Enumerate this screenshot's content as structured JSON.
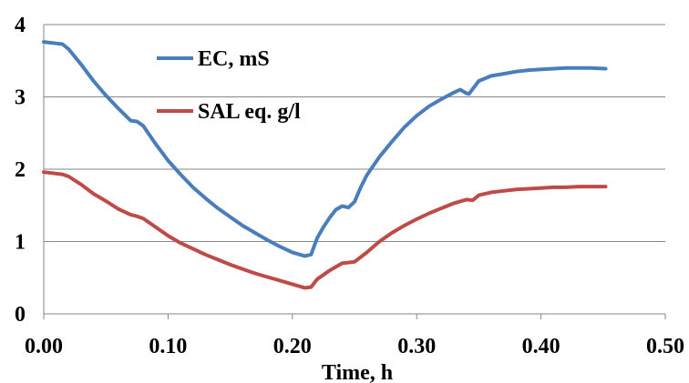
{
  "chart_data": {
    "type": "line",
    "xlabel": "Time, h",
    "ylabel": "",
    "xlim": [
      0.0,
      0.5
    ],
    "ylim": [
      0,
      4
    ],
    "x_ticks": [
      "0.00",
      "0.10",
      "0.20",
      "0.30",
      "0.40",
      "0.50"
    ],
    "y_ticks": [
      "0",
      "1",
      "2",
      "3",
      "4"
    ],
    "grid": "horizontal",
    "legend_position": "top-center",
    "series": [
      {
        "name": "EC, mS",
        "color": "#4a7ebb",
        "points": [
          [
            0.0,
            3.76
          ],
          [
            0.01,
            3.74
          ],
          [
            0.015,
            3.73
          ],
          [
            0.02,
            3.66
          ],
          [
            0.03,
            3.45
          ],
          [
            0.04,
            3.22
          ],
          [
            0.05,
            3.02
          ],
          [
            0.06,
            2.84
          ],
          [
            0.07,
            2.67
          ],
          [
            0.075,
            2.66
          ],
          [
            0.08,
            2.6
          ],
          [
            0.09,
            2.35
          ],
          [
            0.1,
            2.12
          ],
          [
            0.11,
            1.93
          ],
          [
            0.12,
            1.75
          ],
          [
            0.13,
            1.6
          ],
          [
            0.14,
            1.46
          ],
          [
            0.15,
            1.34
          ],
          [
            0.16,
            1.22
          ],
          [
            0.17,
            1.12
          ],
          [
            0.18,
            1.02
          ],
          [
            0.19,
            0.93
          ],
          [
            0.2,
            0.85
          ],
          [
            0.21,
            0.8
          ],
          [
            0.215,
            0.82
          ],
          [
            0.22,
            1.05
          ],
          [
            0.225,
            1.2
          ],
          [
            0.23,
            1.33
          ],
          [
            0.235,
            1.44
          ],
          [
            0.24,
            1.49
          ],
          [
            0.245,
            1.47
          ],
          [
            0.25,
            1.55
          ],
          [
            0.255,
            1.75
          ],
          [
            0.26,
            1.92
          ],
          [
            0.27,
            2.17
          ],
          [
            0.28,
            2.38
          ],
          [
            0.29,
            2.58
          ],
          [
            0.3,
            2.74
          ],
          [
            0.31,
            2.87
          ],
          [
            0.32,
            2.97
          ],
          [
            0.33,
            3.06
          ],
          [
            0.335,
            3.1
          ],
          [
            0.34,
            3.05
          ],
          [
            0.342,
            3.04
          ],
          [
            0.35,
            3.22
          ],
          [
            0.36,
            3.29
          ],
          [
            0.37,
            3.32
          ],
          [
            0.38,
            3.35
          ],
          [
            0.39,
            3.37
          ],
          [
            0.4,
            3.38
          ],
          [
            0.41,
            3.39
          ],
          [
            0.42,
            3.4
          ],
          [
            0.43,
            3.4
          ],
          [
            0.44,
            3.4
          ],
          [
            0.452,
            3.39
          ]
        ]
      },
      {
        "name": "SAL eq. g/l",
        "color": "#be4b48",
        "points": [
          [
            0.0,
            1.96
          ],
          [
            0.01,
            1.94
          ],
          [
            0.015,
            1.93
          ],
          [
            0.02,
            1.9
          ],
          [
            0.03,
            1.79
          ],
          [
            0.04,
            1.66
          ],
          [
            0.05,
            1.56
          ],
          [
            0.06,
            1.45
          ],
          [
            0.07,
            1.37
          ],
          [
            0.075,
            1.35
          ],
          [
            0.08,
            1.32
          ],
          [
            0.09,
            1.2
          ],
          [
            0.1,
            1.08
          ],
          [
            0.11,
            0.98
          ],
          [
            0.12,
            0.9
          ],
          [
            0.13,
            0.82
          ],
          [
            0.14,
            0.75
          ],
          [
            0.15,
            0.68
          ],
          [
            0.16,
            0.62
          ],
          [
            0.17,
            0.56
          ],
          [
            0.18,
            0.51
          ],
          [
            0.19,
            0.46
          ],
          [
            0.2,
            0.41
          ],
          [
            0.21,
            0.36
          ],
          [
            0.215,
            0.37
          ],
          [
            0.22,
            0.48
          ],
          [
            0.23,
            0.6
          ],
          [
            0.24,
            0.7
          ],
          [
            0.25,
            0.72
          ],
          [
            0.26,
            0.85
          ],
          [
            0.27,
            1.0
          ],
          [
            0.28,
            1.12
          ],
          [
            0.29,
            1.22
          ],
          [
            0.3,
            1.31
          ],
          [
            0.31,
            1.39
          ],
          [
            0.32,
            1.46
          ],
          [
            0.33,
            1.53
          ],
          [
            0.34,
            1.58
          ],
          [
            0.345,
            1.57
          ],
          [
            0.35,
            1.64
          ],
          [
            0.36,
            1.68
          ],
          [
            0.37,
            1.7
          ],
          [
            0.38,
            1.72
          ],
          [
            0.39,
            1.73
          ],
          [
            0.4,
            1.74
          ],
          [
            0.41,
            1.75
          ],
          [
            0.42,
            1.75
          ],
          [
            0.43,
            1.76
          ],
          [
            0.44,
            1.76
          ],
          [
            0.452,
            1.76
          ]
        ]
      }
    ]
  }
}
